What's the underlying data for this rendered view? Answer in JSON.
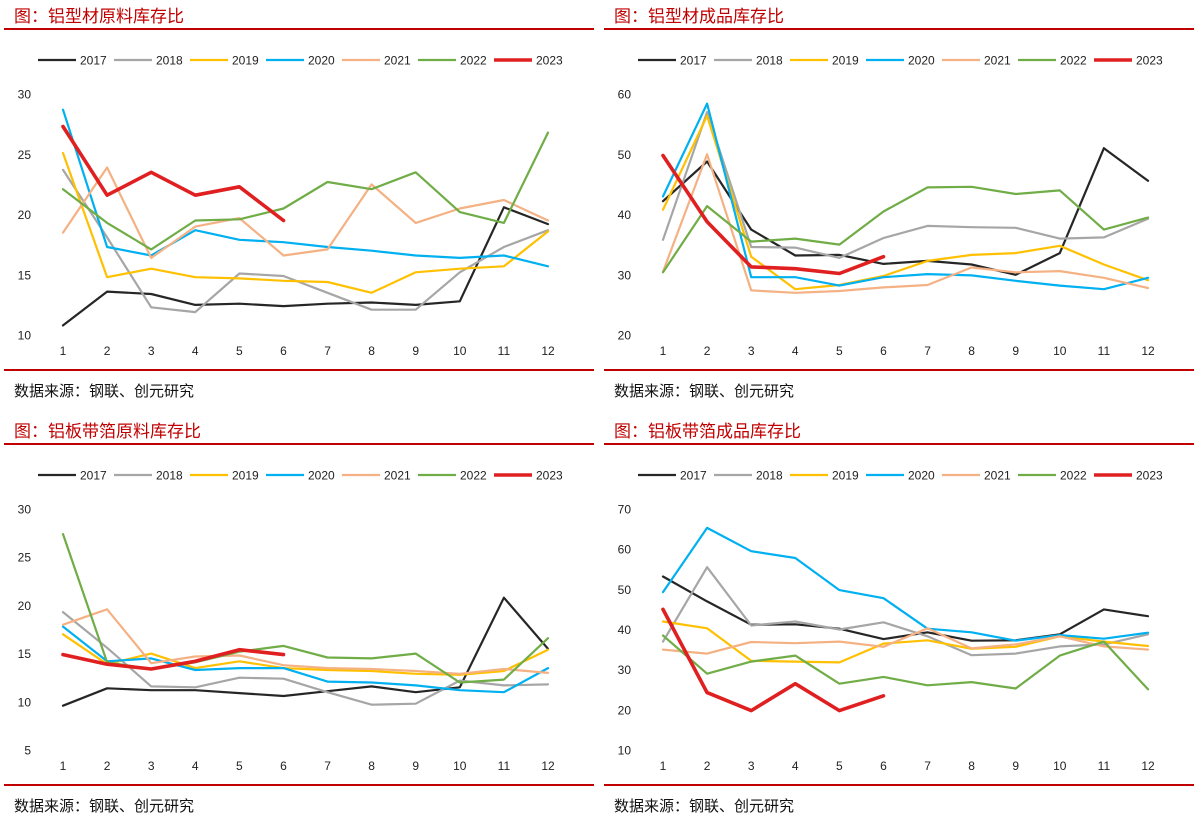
{
  "source_label": "数据来源：钢联、创元研究",
  "chart_data": [
    {
      "type": "line",
      "title": "图：铝型材原料库存比",
      "xlabel": "",
      "ylabel": "",
      "categories": [
        "1",
        "2",
        "3",
        "4",
        "5",
        "6",
        "7",
        "8",
        "9",
        "10",
        "11",
        "12"
      ],
      "ylim": [
        10,
        30
      ],
      "yticks": [
        10,
        15,
        20,
        25,
        30
      ],
      "legend": "top",
      "series": [
        {
          "name": "2017",
          "color": "#262626",
          "width": 2.2,
          "values": [
            10.8,
            13.6,
            13.4,
            12.5,
            12.6,
            12.4,
            12.6,
            12.7,
            12.5,
            12.8,
            20.6,
            19.2
          ]
        },
        {
          "name": "2018",
          "color": "#a6a6a6",
          "width": 2.2,
          "values": [
            23.7,
            18.1,
            12.3,
            11.9,
            15.1,
            14.9,
            13.5,
            12.1,
            12.1,
            15.2,
            17.3,
            18.7
          ]
        },
        {
          "name": "2019",
          "color": "#ffc000",
          "width": 2.2,
          "values": [
            25.1,
            14.8,
            15.5,
            14.8,
            14.7,
            14.5,
            14.4,
            13.5,
            15.2,
            15.5,
            15.7,
            18.6
          ]
        },
        {
          "name": "2020",
          "color": "#00b0f0",
          "width": 2.2,
          "values": [
            28.7,
            17.3,
            16.6,
            18.7,
            17.9,
            17.7,
            17.3,
            17.0,
            16.6,
            16.4,
            16.6,
            15.7
          ]
        },
        {
          "name": "2021",
          "color": "#f4b183",
          "width": 2.2,
          "values": [
            18.5,
            23.9,
            16.4,
            19.0,
            19.7,
            16.6,
            17.1,
            22.5,
            19.3,
            20.5,
            21.2,
            19.5
          ]
        },
        {
          "name": "2022",
          "color": "#70ad47",
          "width": 2.2,
          "values": [
            22.1,
            19.3,
            17.1,
            19.5,
            19.6,
            20.5,
            22.7,
            22.1,
            23.5,
            20.2,
            19.3,
            26.8
          ]
        },
        {
          "name": "2023",
          "color": "#e02020",
          "width": 3.6,
          "values": [
            27.3,
            21.6,
            23.5,
            21.6,
            22.3,
            19.5,
            null,
            null,
            null,
            null,
            null,
            null
          ]
        }
      ]
    },
    {
      "type": "line",
      "title": "图：铝型材成品库存比",
      "xlabel": "",
      "ylabel": "",
      "categories": [
        "1",
        "2",
        "3",
        "4",
        "5",
        "6",
        "7",
        "8",
        "9",
        "10",
        "11",
        "12"
      ],
      "ylim": [
        20,
        60
      ],
      "yticks": [
        20,
        30,
        40,
        50,
        60
      ],
      "legend": "top",
      "series": [
        {
          "name": "2017",
          "color": "#262626",
          "width": 2.2,
          "values": [
            42.2,
            48.8,
            37.5,
            33.2,
            33.3,
            31.8,
            32.3,
            31.7,
            30.0,
            33.6,
            51.0,
            45.6
          ]
        },
        {
          "name": "2018",
          "color": "#a6a6a6",
          "width": 2.2,
          "values": [
            35.8,
            57.0,
            34.6,
            34.5,
            32.8,
            36.1,
            38.1,
            37.9,
            37.8,
            36.0,
            36.2,
            39.3
          ]
        },
        {
          "name": "2019",
          "color": "#ffc000",
          "width": 2.2,
          "values": [
            40.8,
            56.4,
            33.0,
            27.6,
            28.3,
            29.8,
            32.3,
            33.3,
            33.6,
            34.8,
            31.7,
            29.1
          ]
        },
        {
          "name": "2020",
          "color": "#00b0f0",
          "width": 2.2,
          "values": [
            43.0,
            58.4,
            29.6,
            29.6,
            28.2,
            29.6,
            30.1,
            29.9,
            29.0,
            28.2,
            27.6,
            29.5
          ]
        },
        {
          "name": "2021",
          "color": "#f4b183",
          "width": 2.2,
          "values": [
            30.5,
            50.0,
            27.4,
            27.0,
            27.3,
            27.9,
            28.3,
            31.2,
            30.4,
            30.6,
            29.5,
            27.8
          ]
        },
        {
          "name": "2022",
          "color": "#70ad47",
          "width": 2.2,
          "values": [
            30.4,
            41.4,
            35.5,
            36.0,
            35.0,
            40.5,
            44.5,
            44.6,
            43.4,
            44.0,
            37.5,
            39.5
          ]
        },
        {
          "name": "2023",
          "color": "#e02020",
          "width": 3.6,
          "values": [
            49.8,
            38.8,
            31.3,
            31.0,
            30.2,
            33.0,
            null,
            null,
            null,
            null,
            null,
            null
          ]
        }
      ]
    },
    {
      "type": "line",
      "title": "图：铝板带箔原料库存比",
      "xlabel": "",
      "ylabel": "",
      "categories": [
        "1",
        "2",
        "3",
        "4",
        "5",
        "6",
        "7",
        "8",
        "9",
        "10",
        "11",
        "12"
      ],
      "ylim": [
        5,
        30
      ],
      "yticks": [
        5,
        10,
        15,
        20,
        25,
        30
      ],
      "legend": "top",
      "series": [
        {
          "name": "2017",
          "color": "#262626",
          "width": 2.2,
          "values": [
            9.6,
            11.4,
            11.2,
            11.2,
            10.9,
            10.6,
            11.1,
            11.6,
            11.0,
            11.5,
            20.8,
            15.5
          ]
        },
        {
          "name": "2018",
          "color": "#a6a6a6",
          "width": 2.2,
          "values": [
            19.3,
            15.6,
            11.6,
            11.5,
            12.5,
            12.4,
            11.0,
            9.7,
            9.8,
            12.2,
            11.7,
            11.8
          ]
        },
        {
          "name": "2019",
          "color": "#ffc000",
          "width": 2.2,
          "values": [
            17.0,
            13.9,
            15.0,
            13.5,
            14.2,
            13.5,
            13.3,
            13.2,
            12.9,
            12.8,
            13.2,
            15.4
          ]
        },
        {
          "name": "2020",
          "color": "#00b0f0",
          "width": 2.2,
          "values": [
            17.8,
            14.2,
            14.5,
            13.3,
            13.5,
            13.5,
            12.1,
            12.0,
            11.7,
            11.2,
            11.0,
            13.5
          ]
        },
        {
          "name": "2021",
          "color": "#f4b183",
          "width": 2.2,
          "values": [
            18.0,
            19.6,
            14.0,
            14.7,
            14.8,
            13.8,
            13.5,
            13.4,
            13.2,
            12.9,
            13.4,
            13.0
          ]
        },
        {
          "name": "2022",
          "color": "#70ad47",
          "width": 2.2,
          "values": [
            27.4,
            14.1,
            13.4,
            14.1,
            15.2,
            15.8,
            14.6,
            14.5,
            15.0,
            12.0,
            12.3,
            16.6
          ]
        },
        {
          "name": "2023",
          "color": "#e02020",
          "width": 3.6,
          "values": [
            14.9,
            13.9,
            13.4,
            14.2,
            15.4,
            14.9,
            null,
            null,
            null,
            null,
            null,
            null
          ]
        }
      ]
    },
    {
      "type": "line",
      "title": "图：铝板带箔成品库存比",
      "xlabel": "",
      "ylabel": "",
      "categories": [
        "1",
        "2",
        "3",
        "4",
        "5",
        "6",
        "7",
        "8",
        "9",
        "10",
        "11",
        "12"
      ],
      "ylim": [
        10,
        70
      ],
      "yticks": [
        10,
        20,
        30,
        40,
        50,
        60,
        70
      ],
      "legend": "top",
      "series": [
        {
          "name": "2017",
          "color": "#262626",
          "width": 2.2,
          "values": [
            53.2,
            47.0,
            41.2,
            41.3,
            40.2,
            37.6,
            39.3,
            37.2,
            37.3,
            38.8,
            45.0,
            43.3
          ]
        },
        {
          "name": "2018",
          "color": "#a6a6a6",
          "width": 2.2,
          "values": [
            37.0,
            55.5,
            41.0,
            42.0,
            40.0,
            41.8,
            38.3,
            33.6,
            34.0,
            35.8,
            36.3,
            38.8
          ]
        },
        {
          "name": "2019",
          "color": "#ffc000",
          "width": 2.2,
          "values": [
            42.0,
            40.3,
            32.2,
            32.0,
            31.8,
            36.5,
            37.3,
            35.2,
            35.7,
            38.3,
            37.0,
            35.9
          ]
        },
        {
          "name": "2020",
          "color": "#00b0f0",
          "width": 2.2,
          "values": [
            49.3,
            65.3,
            59.5,
            57.8,
            49.8,
            47.8,
            40.2,
            39.3,
            37.2,
            38.6,
            37.7,
            39.2
          ]
        },
        {
          "name": "2021",
          "color": "#f4b183",
          "width": 2.2,
          "values": [
            35.0,
            34.0,
            36.9,
            36.6,
            37.0,
            35.7,
            40.3,
            35.3,
            36.3,
            38.3,
            35.8,
            35.0
          ]
        },
        {
          "name": "2022",
          "color": "#70ad47",
          "width": 2.2,
          "values": [
            38.5,
            29.0,
            32.0,
            33.5,
            26.5,
            28.2,
            26.1,
            26.9,
            25.3,
            33.5,
            37.0,
            25.1
          ]
        },
        {
          "name": "2023",
          "color": "#e02020",
          "width": 3.6,
          "values": [
            45.0,
            24.3,
            19.8,
            26.5,
            19.8,
            23.5,
            null,
            null,
            null,
            null,
            null,
            null
          ]
        }
      ]
    }
  ]
}
